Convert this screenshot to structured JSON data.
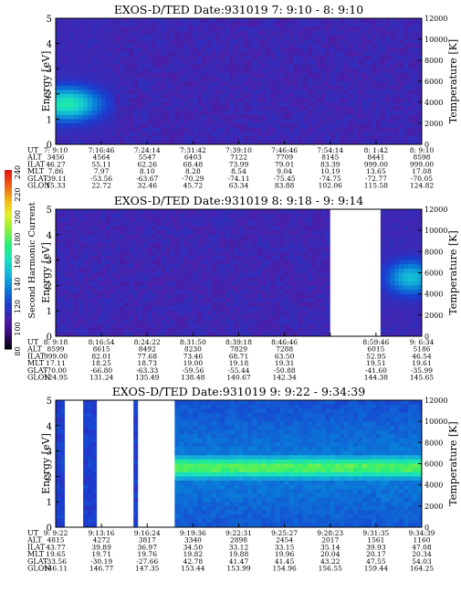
{
  "figure": {
    "colorbar": {
      "label": "Second Harmonic Current",
      "ticks": [
        "240",
        "220",
        "200",
        "180",
        "160",
        "140",
        "120",
        "100",
        "80"
      ],
      "min": 80,
      "max": 240,
      "colors": [
        "#000000",
        "#3a0a7a",
        "#4a1fa8",
        "#1a3ccf",
        "#0a7ad8",
        "#14b4d8",
        "#19e0c0",
        "#28f07a",
        "#8cf03c",
        "#e6f028",
        "#f0b418",
        "#f05a14",
        "#e01010"
      ]
    },
    "row_labels": [
      "UT",
      "ALT",
      "ILAT",
      "MLT",
      "GLAT",
      "GLON"
    ]
  },
  "chart_data": [
    {
      "type": "heatmap",
      "title": "EXOS-D/TED   Date:931019   7: 9:10 -  8: 9:10",
      "ylabel": "Energy [eV]",
      "y2label": "Temperature [K]",
      "ylim": [
        0,
        5
      ],
      "y2lim": [
        0,
        12000
      ],
      "yticks": [
        "0",
        "1",
        "2",
        "3",
        "4",
        "5"
      ],
      "y2ticks": [
        "0",
        "2000",
        "4000",
        "6000",
        "8000",
        "10000",
        "12000"
      ],
      "background_level": 110,
      "features": [
        {
          "kind": "blob",
          "t": [
            0.0,
            0.16
          ],
          "e": [
            0.9,
            2.7
          ],
          "peak": 165,
          "center_t": 0.03,
          "center_e": 1.6
        }
      ],
      "columns": [
        {
          "UT": "7: 9:10",
          "ALT": "3456",
          "ILAT": "46.27",
          "MLT": "7.86",
          "GLAT": "-39.11",
          "GLON": "15.33"
        },
        {
          "UT": "7:16:46",
          "ALT": "4564",
          "ILAT": "55.11",
          "MLT": "7.97",
          "GLAT": "-53.56",
          "GLON": "22.72"
        },
        {
          "UT": "7:24:14",
          "ALT": "5547",
          "ILAT": "62.26",
          "MLT": "8.10",
          "GLAT": "-63.67",
          "GLON": "32.46"
        },
        {
          "UT": "7:31:42",
          "ALT": "6403",
          "ILAT": "68.48",
          "MLT": "8.28",
          "GLAT": "-70.29",
          "GLON": "45.72"
        },
        {
          "UT": "7:39:10",
          "ALT": "7122",
          "ILAT": "73.99",
          "MLT": "8.54",
          "GLAT": "-74.11",
          "GLON": "63.34"
        },
        {
          "UT": "7:46:46",
          "ALT": "7709",
          "ILAT": "79.01",
          "MLT": "9.04",
          "GLAT": "-75.45",
          "GLON": "83.88"
        },
        {
          "UT": "7:54:14",
          "ALT": "8145",
          "ILAT": "83.39",
          "MLT": "10.19",
          "GLAT": "-74.75",
          "GLON": "102.06"
        },
        {
          "UT": "8: 1:42",
          "ALT": "8441",
          "ILAT": "999.00",
          "MLT": "13.65",
          "GLAT": "-72.77",
          "GLON": "115.58"
        },
        {
          "UT": "8: 9:10",
          "ALT": "8598",
          "ILAT": "999.00",
          "MLT": "17.08",
          "GLAT": "-70.05",
          "GLON": "124.82"
        }
      ]
    },
    {
      "type": "heatmap",
      "title": "EXOS-D/TED   Date:931019   8: 9:18 -  9: 9:14",
      "ylabel": "Energy [eV]",
      "y2label": "Temperature [K]",
      "ylim": [
        0,
        5
      ],
      "y2lim": [
        0,
        12000
      ],
      "yticks": [
        "0",
        "1",
        "2",
        "3",
        "4",
        "5"
      ],
      "y2ticks": [
        "0",
        "2000",
        "4000",
        "6000",
        "8000",
        "10000",
        "12000"
      ],
      "background_level": 110,
      "gaps": [
        [
          0.745,
          0.885
        ]
      ],
      "features": [
        {
          "kind": "blob",
          "t": [
            0.885,
            1.0
          ],
          "e": [
            1.4,
            3.2
          ],
          "peak": 150,
          "center_t": 0.97,
          "center_e": 2.3
        }
      ],
      "columns": [
        {
          "UT": "8: 9:18",
          "ALT": "8599",
          "ILAT": "999.00",
          "MLT": "17.11",
          "GLAT": "-70.00",
          "GLON": "124.95"
        },
        {
          "UT": "8:16:54",
          "ALT": "8615",
          "ILAT": "82.01",
          "MLT": "18.25",
          "GLAT": "-66.80",
          "GLON": "131.24"
        },
        {
          "UT": "8:24:22",
          "ALT": "8492",
          "ILAT": "77.68",
          "MLT": "18.73",
          "GLAT": "-63.33",
          "GLON": "135.49"
        },
        {
          "UT": "8:31:50",
          "ALT": "8230",
          "ILAT": "73.46",
          "MLT": "19.00",
          "GLAT": "-59.56",
          "GLON": "138.48"
        },
        {
          "UT": "8:39:18",
          "ALT": "7829",
          "ILAT": "68.71",
          "MLT": "19.18",
          "GLAT": "-55.44",
          "GLON": "140.67"
        },
        {
          "UT": "8:46:46",
          "ALT": "7288",
          "ILAT": "63.50",
          "MLT": "19.31",
          "GLAT": "-50.88",
          "GLON": "142.34"
        },
        {
          "UT": "",
          "ALT": "",
          "ILAT": "",
          "MLT": "",
          "GLAT": "",
          "GLON": ""
        },
        {
          "UT": "8:59:46",
          "ALT": "6015",
          "ILAT": "52.95",
          "MLT": "19.51",
          "GLAT": "-41.60",
          "GLON": "144.38"
        },
        {
          "UT": "9: 6:34",
          "ALT": "5186",
          "ILAT": "46.54",
          "MLT": "19.61",
          "GLAT": "-35.99",
          "GLON": "145.65"
        }
      ]
    },
    {
      "type": "heatmap",
      "title": "EXOS-D/TED   Date:931019   9: 9:22 -  9:34:39",
      "ylabel": "Energy [eV]",
      "y2label": "Temperature [K]",
      "ylim": [
        0,
        5
      ],
      "y2lim": [
        0,
        12000
      ],
      "yticks": [
        "0",
        "1",
        "2",
        "3",
        "4",
        "5"
      ],
      "y2ticks": [
        "0",
        "2000",
        "4000",
        "6000",
        "8000",
        "10000",
        "12000"
      ],
      "background_level": 120,
      "gaps": [
        [
          0.02,
          0.08
        ],
        [
          0.115,
          0.215
        ],
        [
          0.225,
          0.32
        ]
      ],
      "features": [
        {
          "kind": "band",
          "t": [
            0.32,
            1.0
          ],
          "e": [
            1.9,
            2.9
          ],
          "peak": 185,
          "center_e": 2.35
        },
        {
          "kind": "diffuse",
          "t": [
            0.32,
            1.0
          ],
          "e": [
            0.0,
            5.0
          ],
          "peak": 135
        }
      ],
      "columns": [
        {
          "UT": "9: 9:22",
          "ALT": "4815",
          "ILAT": "43.77",
          "MLT": "19.65",
          "GLAT": "-33.56",
          "GLON": "146.11"
        },
        {
          "UT": "9:13:16",
          "ALT": "4272",
          "ILAT": "39.89",
          "MLT": "19.71",
          "GLAT": "-30.19",
          "GLON": "146.77"
        },
        {
          "UT": "9:16:24",
          "ALT": "3817",
          "ILAT": "36.97",
          "MLT": "19.76",
          "GLAT": "-27.66",
          "GLON": "147.35"
        },
        {
          "UT": "9:19:36",
          "ALT": "3340",
          "ILAT": "34.50",
          "MLT": "19.82",
          "GLAT": "42.78",
          "GLON": "153.44"
        },
        {
          "UT": "9:22:31",
          "ALT": "2898",
          "ILAT": "33.12",
          "MLT": "19.88",
          "GLAT": "41.47",
          "GLON": "153.99"
        },
        {
          "UT": "9:25:27",
          "ALT": "2454",
          "ILAT": "33.15",
          "MLT": "19.96",
          "GLAT": "41.45",
          "GLON": "154.96"
        },
        {
          "UT": "9:28:23",
          "ALT": "2017",
          "ILAT": "35.14",
          "MLT": "20.04",
          "GLAT": "43.22",
          "GLON": "156.55"
        },
        {
          "UT": "9:31:35",
          "ALT": "1561",
          "ILAT": "39.93",
          "MLT": "20.17",
          "GLAT": "47.55",
          "GLON": "159.44"
        },
        {
          "UT": "9:34:39",
          "ALT": "1160",
          "ILAT": "47.08",
          "MLT": "20.34",
          "GLAT": "54.03",
          "GLON": "164.25"
        }
      ]
    }
  ]
}
